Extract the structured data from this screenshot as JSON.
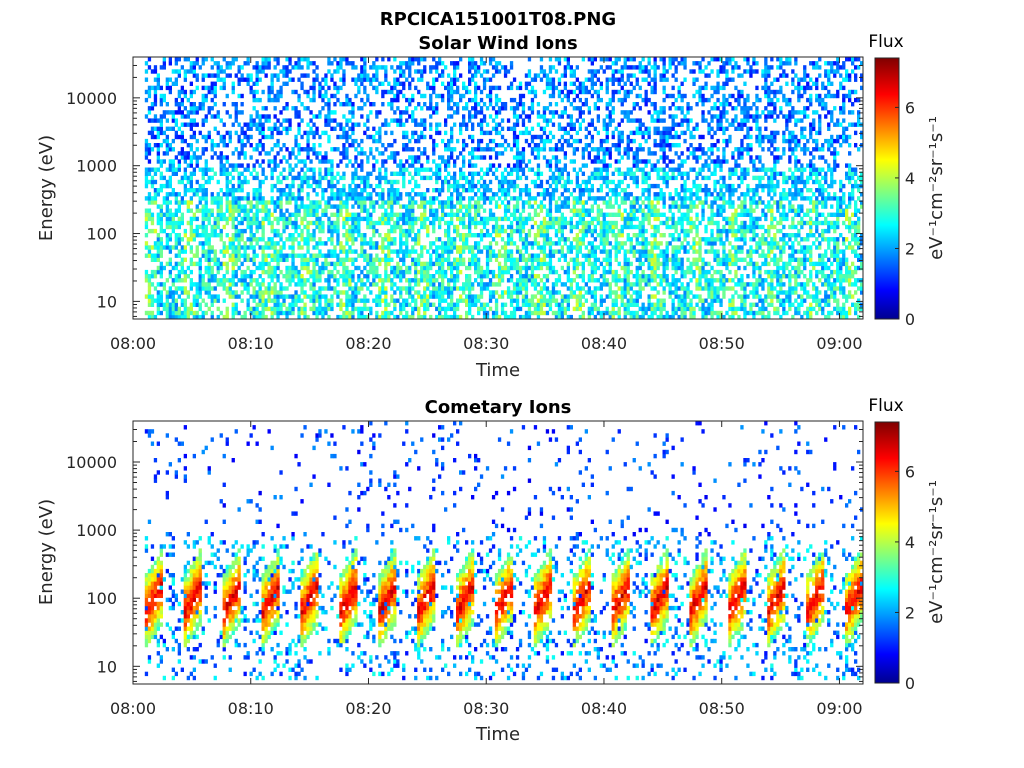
{
  "figure": {
    "title": "RPCICA151001T08.PNG"
  },
  "chart_data": [
    {
      "type": "heatmap",
      "title": "Solar Wind Ions",
      "xlabel": "Time",
      "ylabel": "Energy (eV)",
      "x_ticks": [
        "08:00",
        "08:10",
        "08:20",
        "08:30",
        "08:40",
        "08:50",
        "09:00"
      ],
      "xlim": [
        "08:00",
        "09:02"
      ],
      "data_start": "08:01",
      "y_scale": "log",
      "ylim": [
        5.5,
        40000
      ],
      "y_ticks": [
        10,
        100,
        1000,
        10000
      ],
      "y_tick_labels": [
        "10",
        "100",
        "1000",
        "10000"
      ],
      "colorbar": {
        "title": "Flux",
        "label": "eV⁻¹cm⁻²sr⁻¹s⁻¹",
        "range": [
          0,
          7.4
        ],
        "ticks": [
          "0",
          "2",
          "4",
          "6"
        ],
        "colormap": "jet"
      },
      "features": "Sparse blue (flux ~1–3) across 1e3–3e4 eV; denser cyan/green (flux ~2–4) at 6–300 eV with periodic vertical streaks roughly every 3–4 minutes."
    },
    {
      "type": "heatmap",
      "title": "Cometary Ions",
      "xlabel": "Time",
      "ylabel": "Energy (eV)",
      "x_ticks": [
        "08:00",
        "08:10",
        "08:20",
        "08:30",
        "08:40",
        "08:50",
        "09:00"
      ],
      "xlim": [
        "08:00",
        "09:02"
      ],
      "data_start": "08:01",
      "y_scale": "log",
      "ylim": [
        5.5,
        40000
      ],
      "y_ticks": [
        10,
        100,
        1000,
        10000
      ],
      "y_tick_labels": [
        "10",
        "100",
        "1000",
        "10000"
      ],
      "colorbar": {
        "title": "Flux",
        "label": "eV⁻¹cm⁻²sr⁻¹s⁻¹",
        "range": [
          0,
          7.4
        ],
        "ticks": [
          "0",
          "2",
          "4",
          "6"
        ],
        "colormap": "jet"
      },
      "features": "Isolated blue pixels above 1e3 eV; periodic V-shaped bursts every ~3 minutes peaking at 30–100 eV with flux up to ~6 (orange/red), extending to ~500 eV."
    }
  ]
}
